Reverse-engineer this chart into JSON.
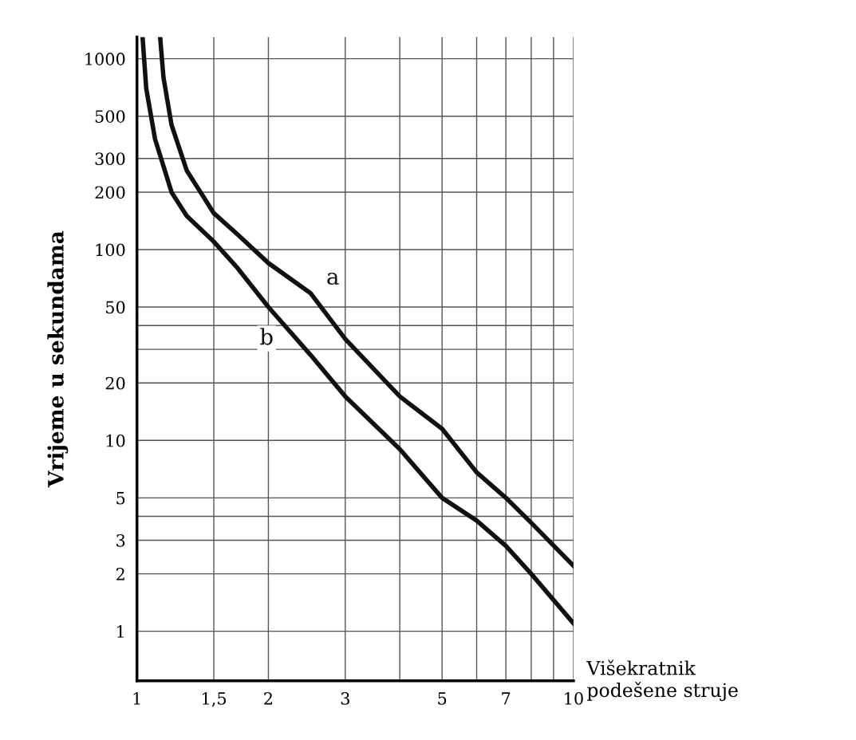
{
  "chart_data": {
    "type": "line",
    "xlabel": "Višekratnik\npodešene struje",
    "ylabel": "Vrijeme u sekundama",
    "log": "xy",
    "grid": true,
    "marker": "none",
    "line_style": "solid",
    "xlim": [
      1,
      10
    ],
    "ylim": [
      0.55,
      1300
    ],
    "xticks": [
      1,
      {
        "value": 1.5,
        "label": "1,5"
      },
      2,
      3,
      {
        "value": 4,
        "label": null
      },
      5,
      {
        "value": 6,
        "label": null
      },
      7,
      {
        "value": 8,
        "label": null
      },
      {
        "value": 9,
        "label": null
      },
      10
    ],
    "yticks": [
      1,
      2,
      3,
      {
        "value": 4,
        "label": null
      },
      5,
      10,
      20,
      {
        "value": 30,
        "label": null
      },
      {
        "value": 40,
        "label": null
      },
      50,
      100,
      200,
      300,
      500,
      1000
    ],
    "series": [
      {
        "name": "a",
        "color": "#111111",
        "x": [
          1.13,
          1.15,
          1.2,
          1.3,
          1.5,
          1.7,
          2,
          2.5,
          3,
          4,
          5,
          6,
          7,
          8,
          10
        ],
        "values": [
          1300,
          800,
          450,
          260,
          155,
          120,
          85,
          59,
          34,
          17,
          11.5,
          6.8,
          5,
          3.7,
          2.2
        ]
      },
      {
        "name": "b",
        "color": "#111111",
        "x": [
          1.03,
          1.05,
          1.1,
          1.2,
          1.3,
          1.5,
          1.7,
          2,
          2.5,
          3,
          4,
          5,
          6,
          7,
          8,
          10
        ],
        "values": [
          1300,
          700,
          380,
          200,
          150,
          110,
          80,
          50,
          28,
          17,
          9,
          5,
          3.8,
          2.8,
          2.0,
          1.1
        ]
      }
    ]
  }
}
